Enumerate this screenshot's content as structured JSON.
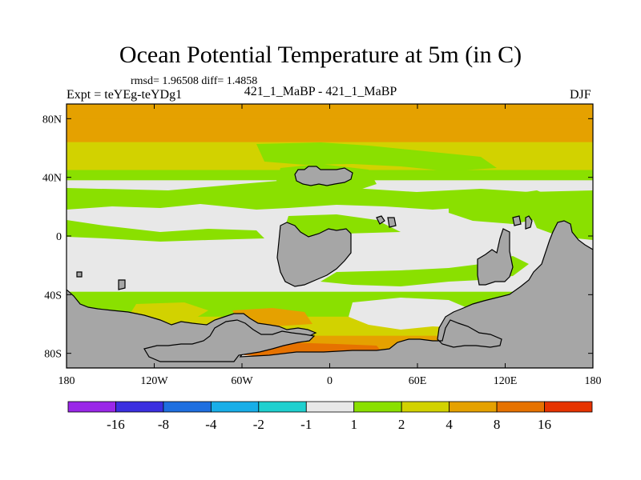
{
  "chart_data": {
    "type": "heatmap",
    "title": "Ocean Potential Temperature at 5m (in C)",
    "stats": "rmsd= 1.96508 diff= 1.4858",
    "experiment": "Expt = teYEg-teYDg1",
    "period": "421_1_MaBP - 421_1_MaBP",
    "season": "DJF",
    "x_axis": {
      "range": [
        -180,
        180
      ],
      "tick_values": [
        -180,
        -120,
        -60,
        0,
        60,
        120,
        180
      ],
      "tick_labels": [
        "180",
        "120W",
        "60W",
        "0",
        "60E",
        "120E",
        "180"
      ]
    },
    "y_axis": {
      "range": [
        -90,
        90
      ],
      "tick_values": [
        80,
        40,
        0,
        -40,
        -80
      ],
      "tick_labels": [
        "80N",
        "40N",
        "0",
        "40S",
        "80S"
      ]
    },
    "colorbar": {
      "boundaries": [
        "-16",
        "-8",
        "-4",
        "-2",
        "-1",
        "1",
        "2",
        "4",
        "8",
        "16"
      ],
      "colors": [
        "#9a27e8",
        "#3b2fe0",
        "#1f6fe0",
        "#18aee8",
        "#1fd0cf",
        "#e8e8e8",
        "#8ae000",
        "#d2d200",
        "#e5a100",
        "#e67200",
        "#e63300"
      ]
    },
    "bands": [
      {
        "lat_min": 64,
        "lat_max": 80,
        "level": "8"
      },
      {
        "lat_min": 45,
        "lat_max": 64,
        "level": "4"
      },
      {
        "lat_min": 38,
        "lat_max": 45,
        "level": "2"
      },
      {
        "lat_min": -38,
        "lat_max": 38,
        "level": "1"
      },
      {
        "lat_min": -55,
        "lat_max": -38,
        "level": "2"
      },
      {
        "lat_min": -68,
        "lat_max": -55,
        "level": "4"
      },
      {
        "lat_min": -80,
        "lat_max": -68,
        "level": "8"
      }
    ],
    "land_color": "#a6a6a6"
  }
}
